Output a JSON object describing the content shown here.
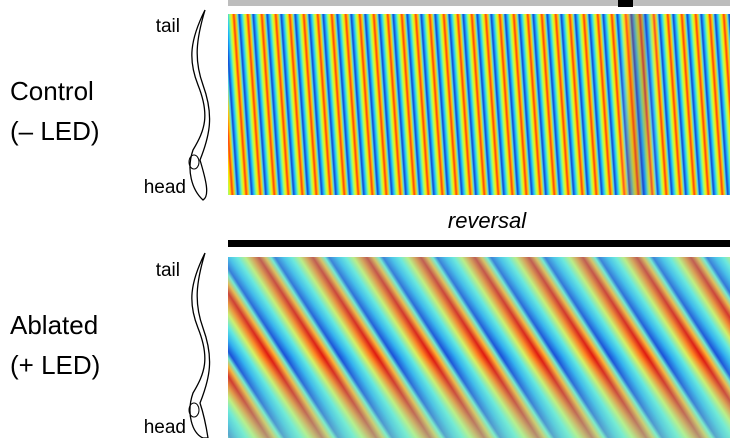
{
  "panels": [
    {
      "label_line1": "Control",
      "label_line2": "(– LED)",
      "tail": "tail",
      "head": "head"
    },
    {
      "label_line1": "Ablated",
      "label_line2": "(+ LED)",
      "tail": "tail",
      "head": "head"
    }
  ],
  "annotation": "reversal"
}
